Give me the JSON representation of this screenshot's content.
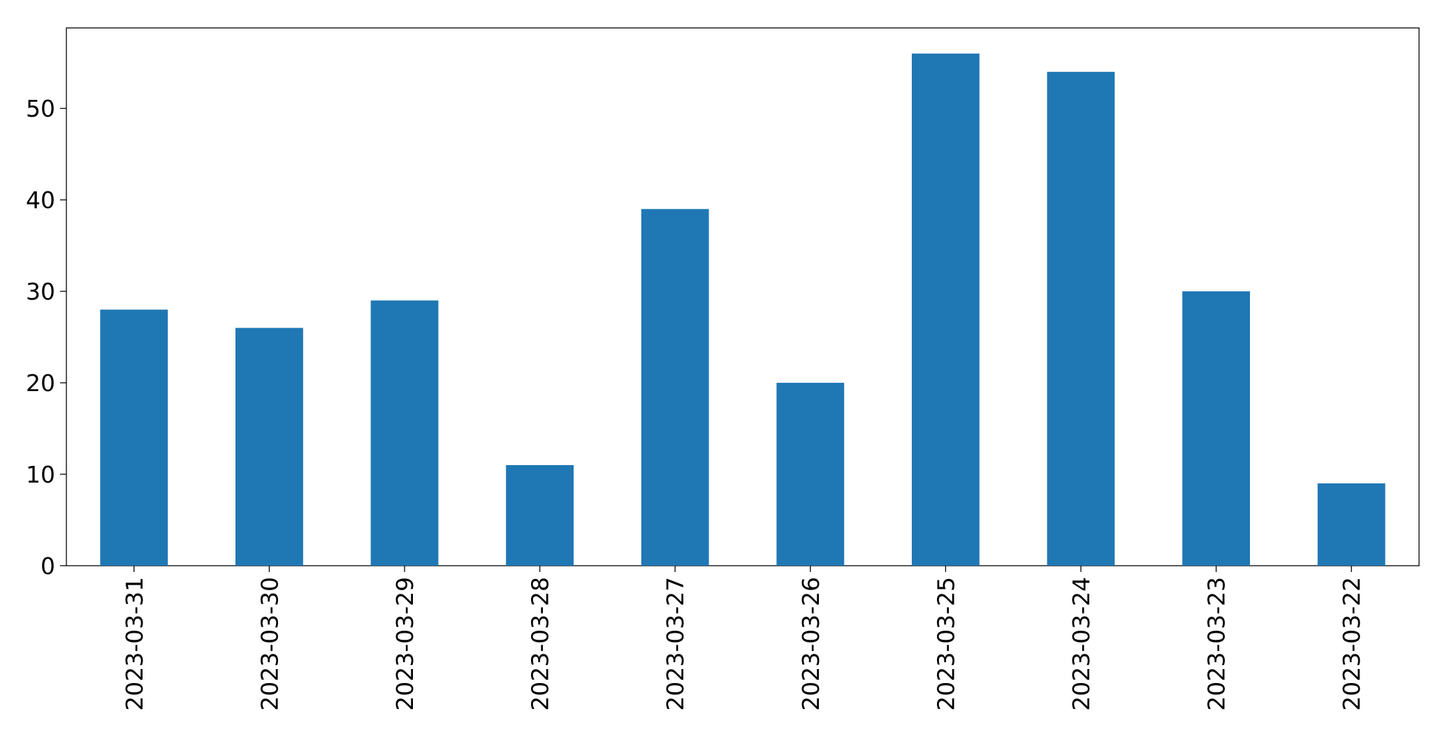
{
  "chart_data": {
    "type": "bar",
    "categories": [
      "2023-03-31",
      "2023-03-30",
      "2023-03-29",
      "2023-03-28",
      "2023-03-27",
      "2023-03-26",
      "2023-03-25",
      "2023-03-24",
      "2023-03-23",
      "2023-03-22"
    ],
    "values": [
      28,
      26,
      29,
      11,
      39,
      20,
      56,
      54,
      30,
      9
    ],
    "color": "#1f77b4",
    "ylim": [
      0,
      58.8
    ],
    "yticks": [
      0,
      10,
      20,
      30,
      40,
      50
    ],
    "grid": false
  }
}
